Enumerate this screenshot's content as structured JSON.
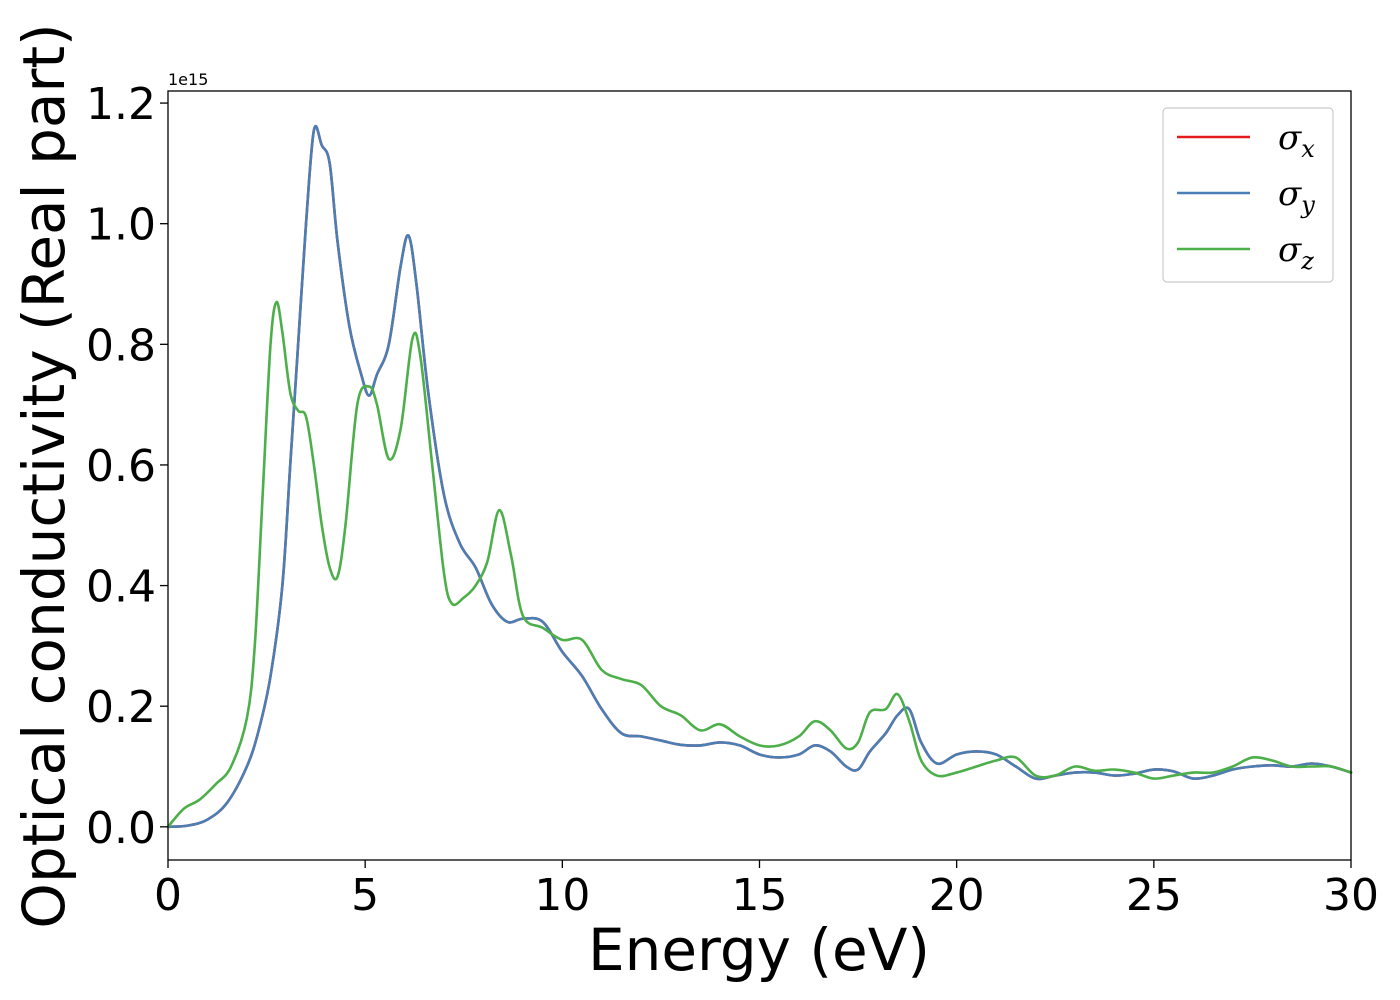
{
  "chart_data": {
    "type": "line",
    "xlabel": "Energy (eV)",
    "ylabel": "Optical conductivity (Real part)",
    "offset_text": "1e15",
    "xlim": [
      0,
      30
    ],
    "ylim": [
      -0.055,
      1.22
    ],
    "xticks": [
      "0",
      "5",
      "10",
      "15",
      "20",
      "25",
      "30"
    ],
    "yticks": [
      "0.0",
      "0.2",
      "0.4",
      "0.6",
      "0.8",
      "1.0",
      "1.2"
    ],
    "grid": false,
    "legend_position": "top-right",
    "series": [
      {
        "name": "σx",
        "symbol": "σ",
        "subscript": "x",
        "color": "#e41a1c",
        "x": [
          0,
          0.5,
          1.0,
          1.5,
          2.0,
          2.3,
          2.6,
          2.9,
          3.1,
          3.3,
          3.5,
          3.7,
          3.9,
          4.1,
          4.3,
          4.6,
          4.9,
          5.1,
          5.3,
          5.6,
          5.9,
          6.1,
          6.3,
          6.6,
          7.0,
          7.4,
          7.8,
          8.2,
          8.6,
          9.0,
          9.5,
          10.0,
          10.5,
          11.0,
          11.5,
          12.0,
          12.5,
          13.0,
          13.5,
          14.0,
          14.5,
          15.0,
          15.5,
          16.0,
          16.4,
          16.8,
          17.2,
          17.5,
          17.8,
          18.2,
          18.5,
          18.8,
          19.1,
          19.5,
          20.0,
          20.5,
          21.0,
          21.5,
          22.0,
          22.5,
          23.0,
          23.5,
          24.0,
          24.5,
          25.0,
          25.5,
          26.0,
          26.5,
          27.0,
          27.5,
          28.0,
          28.5,
          29.0,
          29.5,
          30.0
        ],
        "values": [
          0.0,
          0.002,
          0.012,
          0.04,
          0.1,
          0.16,
          0.25,
          0.4,
          0.6,
          0.8,
          1.0,
          1.155,
          1.13,
          1.1,
          0.97,
          0.83,
          0.75,
          0.715,
          0.75,
          0.8,
          0.93,
          0.98,
          0.9,
          0.72,
          0.55,
          0.47,
          0.43,
          0.37,
          0.34,
          0.345,
          0.34,
          0.29,
          0.25,
          0.195,
          0.155,
          0.15,
          0.143,
          0.136,
          0.135,
          0.14,
          0.135,
          0.12,
          0.115,
          0.12,
          0.135,
          0.125,
          0.1,
          0.095,
          0.125,
          0.155,
          0.185,
          0.195,
          0.14,
          0.105,
          0.12,
          0.125,
          0.12,
          0.1,
          0.08,
          0.085,
          0.09,
          0.09,
          0.085,
          0.088,
          0.095,
          0.092,
          0.08,
          0.085,
          0.095,
          0.1,
          0.102,
          0.1,
          0.105,
          0.1,
          0.09
        ]
      },
      {
        "name": "σy",
        "symbol": "σ",
        "subscript": "y",
        "color": "#4a7fb5",
        "x": [
          0,
          0.5,
          1.0,
          1.5,
          2.0,
          2.3,
          2.6,
          2.9,
          3.1,
          3.3,
          3.5,
          3.7,
          3.9,
          4.1,
          4.3,
          4.6,
          4.9,
          5.1,
          5.3,
          5.6,
          5.9,
          6.1,
          6.3,
          6.6,
          7.0,
          7.4,
          7.8,
          8.2,
          8.6,
          9.0,
          9.5,
          10.0,
          10.5,
          11.0,
          11.5,
          12.0,
          12.5,
          13.0,
          13.5,
          14.0,
          14.5,
          15.0,
          15.5,
          16.0,
          16.4,
          16.8,
          17.2,
          17.5,
          17.8,
          18.2,
          18.5,
          18.8,
          19.1,
          19.5,
          20.0,
          20.5,
          21.0,
          21.5,
          22.0,
          22.5,
          23.0,
          23.5,
          24.0,
          24.5,
          25.0,
          25.5,
          26.0,
          26.5,
          27.0,
          27.5,
          28.0,
          28.5,
          29.0,
          29.5,
          30.0
        ],
        "values": [
          0.0,
          0.002,
          0.012,
          0.04,
          0.1,
          0.16,
          0.25,
          0.4,
          0.6,
          0.8,
          1.0,
          1.155,
          1.13,
          1.1,
          0.97,
          0.83,
          0.75,
          0.715,
          0.75,
          0.8,
          0.93,
          0.98,
          0.9,
          0.72,
          0.55,
          0.47,
          0.43,
          0.37,
          0.34,
          0.345,
          0.34,
          0.29,
          0.25,
          0.195,
          0.155,
          0.15,
          0.143,
          0.136,
          0.135,
          0.14,
          0.135,
          0.12,
          0.115,
          0.12,
          0.135,
          0.125,
          0.1,
          0.095,
          0.125,
          0.155,
          0.185,
          0.195,
          0.14,
          0.105,
          0.12,
          0.125,
          0.12,
          0.1,
          0.08,
          0.085,
          0.09,
          0.09,
          0.085,
          0.088,
          0.095,
          0.092,
          0.08,
          0.085,
          0.095,
          0.1,
          0.102,
          0.1,
          0.105,
          0.1,
          0.09
        ]
      },
      {
        "name": "σz",
        "symbol": "σ",
        "subscript": "z",
        "color": "#4daf4a",
        "x": [
          0,
          0.4,
          0.8,
          1.2,
          1.6,
          2.0,
          2.2,
          2.4,
          2.6,
          2.75,
          2.9,
          3.1,
          3.3,
          3.5,
          3.7,
          3.9,
          4.1,
          4.3,
          4.5,
          4.8,
          5.1,
          5.3,
          5.6,
          5.9,
          6.2,
          6.4,
          6.7,
          7.0,
          7.2,
          7.5,
          7.8,
          8.1,
          8.4,
          8.7,
          9.0,
          9.5,
          10.0,
          10.5,
          11.0,
          11.5,
          12.0,
          12.5,
          13.0,
          13.5,
          14.0,
          14.5,
          15.0,
          15.5,
          16.0,
          16.4,
          16.8,
          17.2,
          17.5,
          17.8,
          18.2,
          18.5,
          18.8,
          19.1,
          19.5,
          20.0,
          20.5,
          21.0,
          21.5,
          22.0,
          22.5,
          23.0,
          23.5,
          24.0,
          24.5,
          25.0,
          25.5,
          26.0,
          26.5,
          27.0,
          27.5,
          28.0,
          28.5,
          29.0,
          29.5,
          30.0
        ],
        "values": [
          0.0,
          0.03,
          0.045,
          0.07,
          0.1,
          0.18,
          0.3,
          0.55,
          0.8,
          0.87,
          0.82,
          0.72,
          0.69,
          0.68,
          0.6,
          0.5,
          0.43,
          0.415,
          0.5,
          0.7,
          0.73,
          0.7,
          0.61,
          0.66,
          0.81,
          0.78,
          0.6,
          0.42,
          0.37,
          0.38,
          0.4,
          0.44,
          0.525,
          0.45,
          0.35,
          0.33,
          0.31,
          0.31,
          0.26,
          0.245,
          0.235,
          0.2,
          0.185,
          0.16,
          0.17,
          0.15,
          0.135,
          0.135,
          0.15,
          0.175,
          0.16,
          0.13,
          0.14,
          0.19,
          0.195,
          0.22,
          0.175,
          0.11,
          0.085,
          0.09,
          0.1,
          0.11,
          0.115,
          0.085,
          0.085,
          0.1,
          0.093,
          0.095,
          0.09,
          0.08,
          0.085,
          0.09,
          0.09,
          0.1,
          0.115,
          0.11,
          0.1,
          0.1,
          0.1,
          0.09
        ]
      }
    ]
  }
}
